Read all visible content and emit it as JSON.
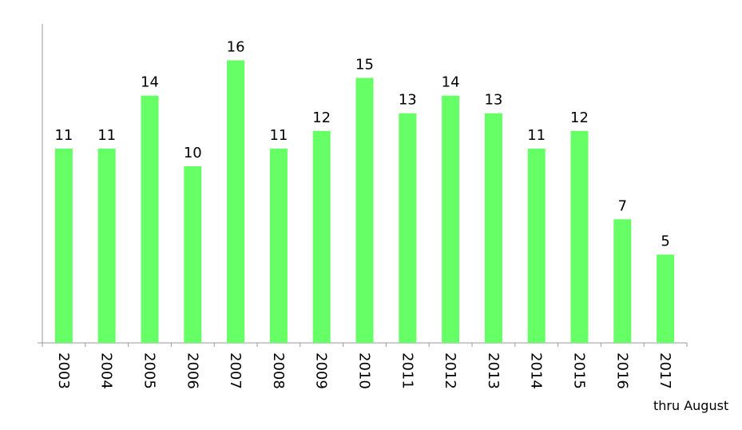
{
  "chart_data": {
    "type": "bar",
    "categories": [
      "2003",
      "2004",
      "2005",
      "2006",
      "2007",
      "2008",
      "2009",
      "2010",
      "2011",
      "2012",
      "2013",
      "2014",
      "2015",
      "2016",
      "2017"
    ],
    "values": [
      11,
      11,
      14,
      10,
      16,
      11,
      12,
      15,
      13,
      14,
      13,
      11,
      12,
      7,
      5
    ],
    "title": "",
    "xlabel": "",
    "ylabel": "",
    "ylim": [
      0,
      18
    ],
    "grid": false,
    "legend": "none",
    "data_labels": true,
    "bar_color": "#66ff66",
    "annotations": [
      {
        "text": "thru August"
      }
    ]
  }
}
